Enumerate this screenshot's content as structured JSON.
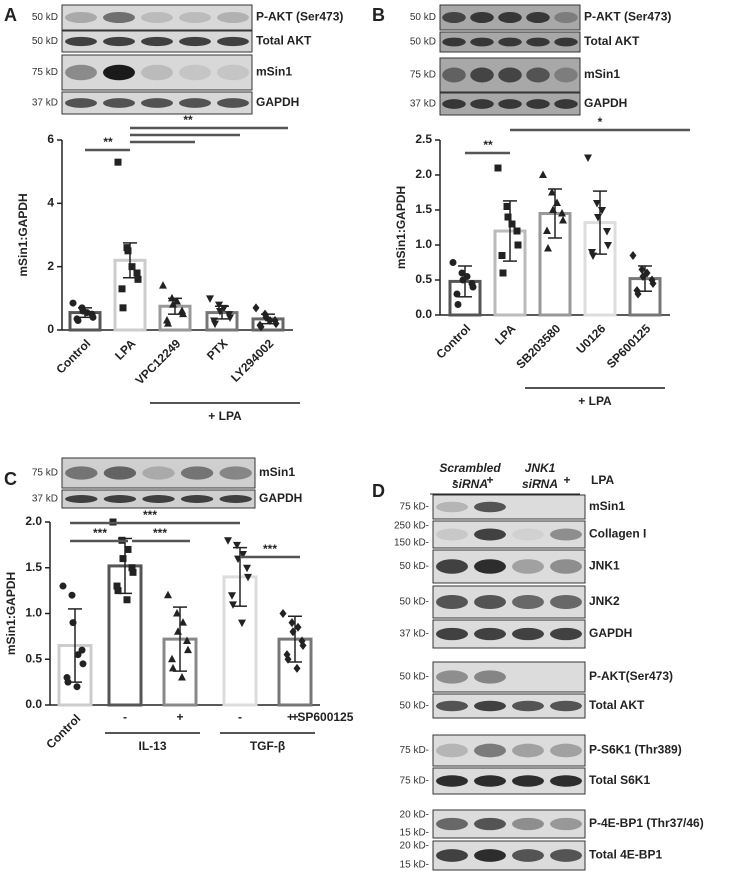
{
  "chart_data": [
    {
      "type": "bar",
      "panel": "A",
      "ylabel": "mSin1:GAPDH",
      "categories": [
        "Control",
        "LPA",
        "VPC12249",
        "PTX",
        "LY294002"
      ],
      "values": [
        0.55,
        2.2,
        0.75,
        0.55,
        0.35
      ],
      "errors": [
        0.15,
        0.55,
        0.25,
        0.2,
        0.15
      ],
      "points": [
        [
          0.85,
          0.7,
          0.6,
          0.5,
          0.4,
          0.35,
          0.3,
          0.55
        ],
        [
          5.3,
          2.6,
          2.5,
          1.8,
          1.6,
          1.3,
          0.7,
          2.0
        ],
        [
          1.4,
          1.0,
          0.8,
          0.6,
          0.5,
          0.3,
          0.2,
          0.9
        ],
        [
          1.0,
          0.8,
          0.6,
          0.5,
          0.4,
          0.3,
          0.2,
          0.7
        ],
        [
          0.7,
          0.5,
          0.4,
          0.3,
          0.2,
          0.15,
          0.1,
          0.3
        ]
      ],
      "colors": [
        "#555555",
        "#cccccc",
        "#999999",
        "#777777",
        "#666666"
      ],
      "markers": [
        "circle",
        "square",
        "triangle",
        "triangle-down",
        "diamond"
      ],
      "ylim": [
        0,
        6
      ],
      "yticks": [
        0,
        2,
        4,
        6
      ],
      "significance": [
        "**",
        "**"
      ],
      "group_label": "+ LPA"
    },
    {
      "type": "bar",
      "panel": "B",
      "ylabel": "mSin1:GAPDH",
      "categories": [
        "Control",
        "LPA",
        "SB203580",
        "U0126",
        "SP600125"
      ],
      "values": [
        0.48,
        1.2,
        1.45,
        1.32,
        0.52
      ],
      "errors": [
        0.22,
        0.43,
        0.35,
        0.45,
        0.18
      ],
      "points": [
        [
          0.75,
          0.6,
          0.5,
          0.45,
          0.4,
          0.3,
          0.15,
          0.55
        ],
        [
          2.1,
          1.55,
          1.4,
          1.2,
          1.0,
          0.85,
          0.6,
          1.3
        ],
        [
          2.0,
          1.75,
          1.5,
          1.45,
          1.35,
          1.2,
          0.95,
          1.6
        ],
        [
          2.25,
          1.6,
          1.4,
          1.2,
          1.0,
          0.9,
          0.85,
          1.5
        ],
        [
          0.85,
          0.65,
          0.55,
          0.5,
          0.45,
          0.35,
          0.3,
          0.6
        ]
      ],
      "colors": [
        "#555555",
        "#bbbbbb",
        "#999999",
        "#dddddd",
        "#777777"
      ],
      "markers": [
        "circle",
        "square",
        "triangle",
        "triangle-down",
        "diamond"
      ],
      "ylim": [
        0,
        2.5
      ],
      "yticks": [
        {
          "value": 0,
          "label": "0.0"
        },
        0.5,
        {
          "value": 1,
          "label": "1.0"
        },
        1.5,
        {
          "value": 2,
          "label": "2.0"
        },
        2.5
      ],
      "significance": [
        "**",
        "*"
      ],
      "group_label": "+ LPA"
    },
    {
      "type": "bar",
      "panel": "C",
      "ylabel": "mSin1:GAPDH",
      "categories": [
        "Control",
        "-",
        "+",
        "-",
        "+"
      ],
      "values": [
        0.65,
        1.52,
        0.72,
        1.4,
        0.72
      ],
      "errors": [
        0.4,
        0.3,
        0.35,
        0.32,
        0.25
      ],
      "points": [
        [
          1.3,
          1.2,
          0.9,
          0.6,
          0.45,
          0.3,
          0.25,
          0.2,
          0.55
        ],
        [
          2.0,
          1.8,
          1.6,
          1.5,
          1.45,
          1.3,
          1.25,
          1.15,
          1.7
        ],
        [
          1.2,
          1.0,
          0.8,
          0.7,
          0.6,
          0.5,
          0.4,
          0.3,
          0.9
        ],
        [
          1.8,
          1.75,
          1.6,
          1.5,
          1.4,
          1.2,
          1.1,
          0.9,
          1.65
        ],
        [
          1.0,
          0.9,
          0.8,
          0.7,
          0.65,
          0.55,
          0.5,
          0.4,
          0.85
        ]
      ],
      "colors": [
        "#cccccc",
        "#555555",
        "#888888",
        "#dddddd",
        "#777777"
      ],
      "markers": [
        "circle",
        "square",
        "triangle",
        "triangle-down",
        "diamond"
      ],
      "ylim": [
        0,
        2
      ],
      "yticks": [
        {
          "value": 0,
          "label": "0.0"
        },
        0.5,
        {
          "value": 1,
          "label": "1.0"
        },
        1.5,
        {
          "value": 2,
          "label": "2.0"
        }
      ],
      "significance": [
        "***",
        "***",
        "***",
        "***"
      ],
      "groups": [
        "IL-13",
        "TGF-β"
      ],
      "extra_label": "+ SP600125"
    }
  ],
  "blots": {
    "A": [
      {
        "markers": [
          "50 kD"
        ],
        "label": "P-AKT (Ser473)"
      },
      {
        "markers": [
          "50 kD"
        ],
        "label": "Total AKT"
      },
      {
        "markers": [
          "75 kD"
        ],
        "label": "mSin1"
      },
      {
        "markers": [
          "37 kD"
        ],
        "label": "GAPDH"
      }
    ],
    "B": [
      {
        "markers": [
          "50 kD"
        ],
        "label": "P-AKT (Ser473)"
      },
      {
        "markers": [
          "50 kD"
        ],
        "label": "Total AKT"
      },
      {
        "markers": [
          "75 kD"
        ],
        "label": "mSin1"
      },
      {
        "markers": [
          "37 kD"
        ],
        "label": "GAPDH"
      }
    ],
    "C": [
      {
        "markers": [
          "75 kD"
        ],
        "label": "mSin1"
      },
      {
        "markers": [
          "37 kD"
        ],
        "label": "GAPDH"
      }
    ],
    "D": [
      {
        "markers": [
          "75 kD-"
        ],
        "label": "mSin1"
      },
      {
        "markers": [
          "250 kD-",
          "150 kD-"
        ],
        "label": "Collagen I"
      },
      {
        "markers": [
          "50 kD-"
        ],
        "label": "JNK1"
      },
      {
        "markers": [
          "50 kD-"
        ],
        "label": "JNK2"
      },
      {
        "markers": [
          "37 kD-"
        ],
        "label": "GAPDH"
      },
      {
        "markers": [
          "50 kD-"
        ],
        "label": "P-AKT(Ser473)"
      },
      {
        "markers": [
          "50 kD-"
        ],
        "label": "Total AKT"
      },
      {
        "markers": [
          "75 kD-"
        ],
        "label": "P-S6K1 (Thr389)"
      },
      {
        "markers": [
          "75 kD-"
        ],
        "label": "Total S6K1"
      },
      {
        "markers": [
          "20 kD-",
          "15 kD-"
        ],
        "label": "P-4E-BP1 (Thr37/46)"
      },
      {
        "markers": [
          "20 kD-",
          "15 kD-"
        ],
        "label": "Total 4E-BP1"
      }
    ],
    "D_panel": "D",
    "D_header": {
      "groups": [
        {
          "line1": "Scrambled",
          "line2": "siRNA"
        },
        {
          "line1": "JNK1",
          "line2": "siRNA"
        }
      ],
      "treatment": "LPA",
      "signs": [
        "-",
        "+",
        "-",
        "+"
      ]
    }
  }
}
